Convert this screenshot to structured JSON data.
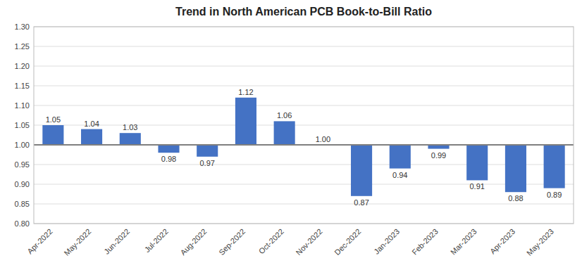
{
  "chart_data": {
    "type": "bar",
    "title": "Trend in North American PCB Book-to-Bill Ratio",
    "categories": [
      "Apr-2022",
      "May-2022",
      "Jun-2022",
      "Jul-2022",
      "Aug-2022",
      "Sep-2022",
      "Oct-2022",
      "Nov-2022",
      "Dec-2022",
      "Jan-2023",
      "Feb-2023",
      "Mar-2023",
      "Apr-2023",
      "May-2023"
    ],
    "values": [
      1.05,
      1.04,
      1.03,
      0.98,
      0.97,
      1.12,
      1.06,
      1.0,
      0.87,
      0.94,
      0.99,
      0.91,
      0.88,
      0.89
    ],
    "value_labels": [
      "1.05",
      "1.04",
      "1.03",
      "0.98",
      "0.97",
      "1.12",
      "1.06",
      "1.00",
      "0.87",
      "0.94",
      "0.99",
      "0.91",
      "0.88",
      "0.89"
    ],
    "baseline": 1.0,
    "color": "#4472C4",
    "ylim": [
      0.8,
      1.3
    ],
    "yticks": [
      {
        "value": 0.8,
        "label": "0.80"
      },
      {
        "value": 0.85,
        "label": "0.85"
      },
      {
        "value": 0.9,
        "label": "0.90"
      },
      {
        "value": 0.95,
        "label": "0.95"
      },
      {
        "value": 1.0,
        "label": "1.00"
      },
      {
        "value": 1.05,
        "label": "1.05"
      },
      {
        "value": 1.1,
        "label": "1.10"
      },
      {
        "value": 1.15,
        "label": "1.15"
      },
      {
        "value": 1.2,
        "label": "1.20"
      },
      {
        "value": 1.25,
        "label": "1.25"
      },
      {
        "value": 1.3,
        "label": "1.30"
      }
    ],
    "grid": true,
    "data_labels": true
  }
}
